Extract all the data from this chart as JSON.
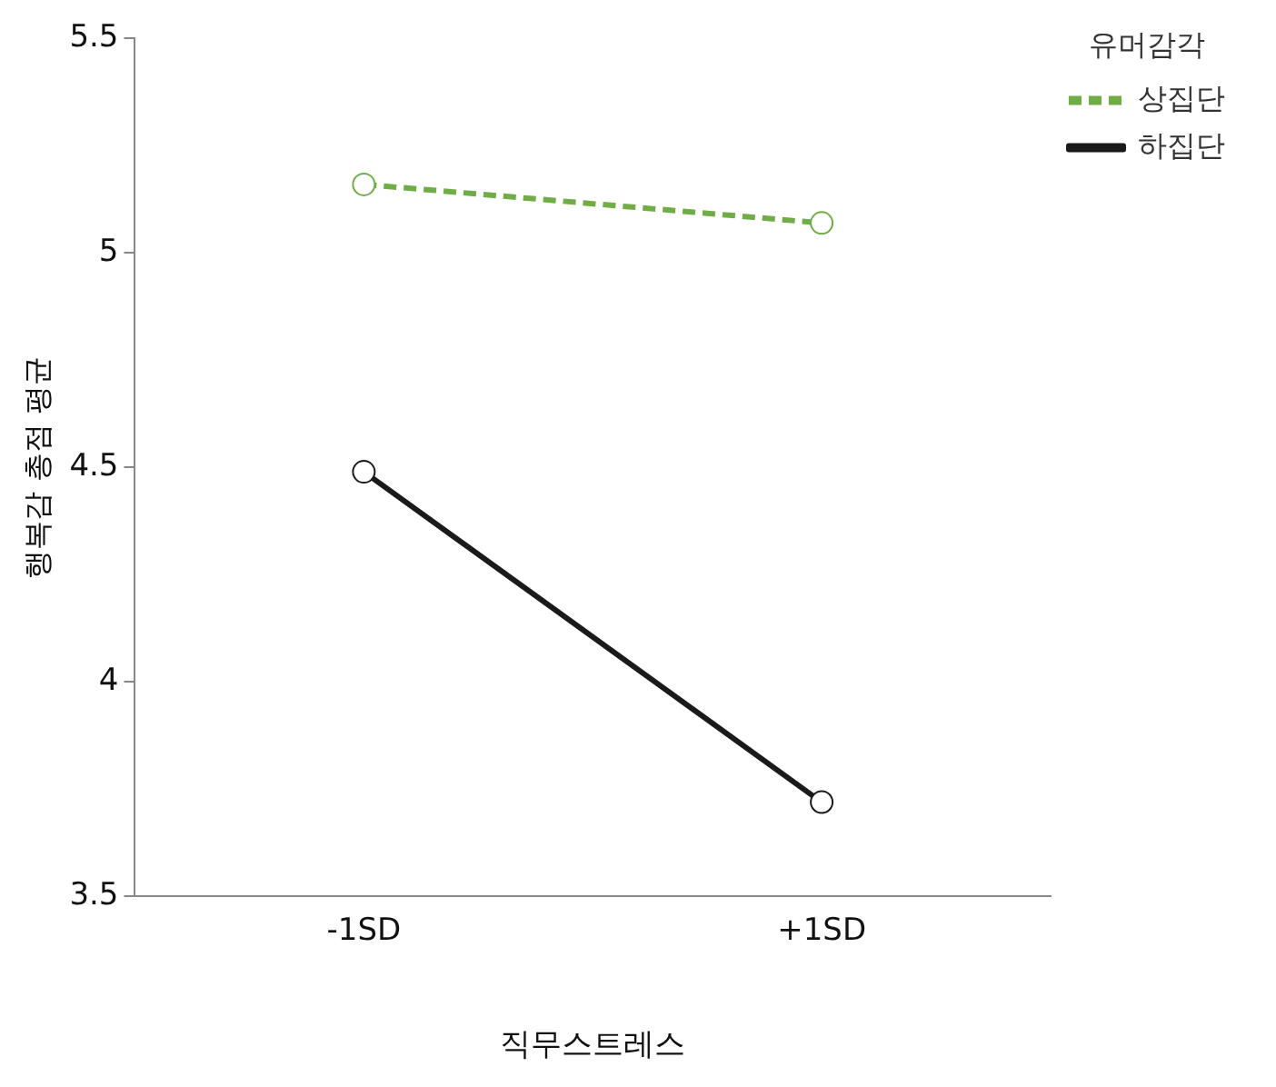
{
  "chart_data": {
    "type": "line",
    "xlabel": "직무스트레스",
    "ylabel": "행복감 총점 평균",
    "legend_title": "유머감각",
    "categories": [
      "-1SD",
      "+1SD"
    ],
    "series": [
      {
        "name": "상집단",
        "color": "#70ad47",
        "values": [
          5.16,
          5.07
        ],
        "line_style": "dashed"
      },
      {
        "name": "하집단",
        "color": "#1a1a1a",
        "values": [
          4.49,
          3.72
        ],
        "line_style": "solid"
      }
    ],
    "ylim": [
      3.5,
      5.5
    ],
    "yticks": [
      3.5,
      4,
      4.5,
      5,
      5.5
    ],
    "grid": false,
    "legend": "right",
    "marker": "circle"
  }
}
